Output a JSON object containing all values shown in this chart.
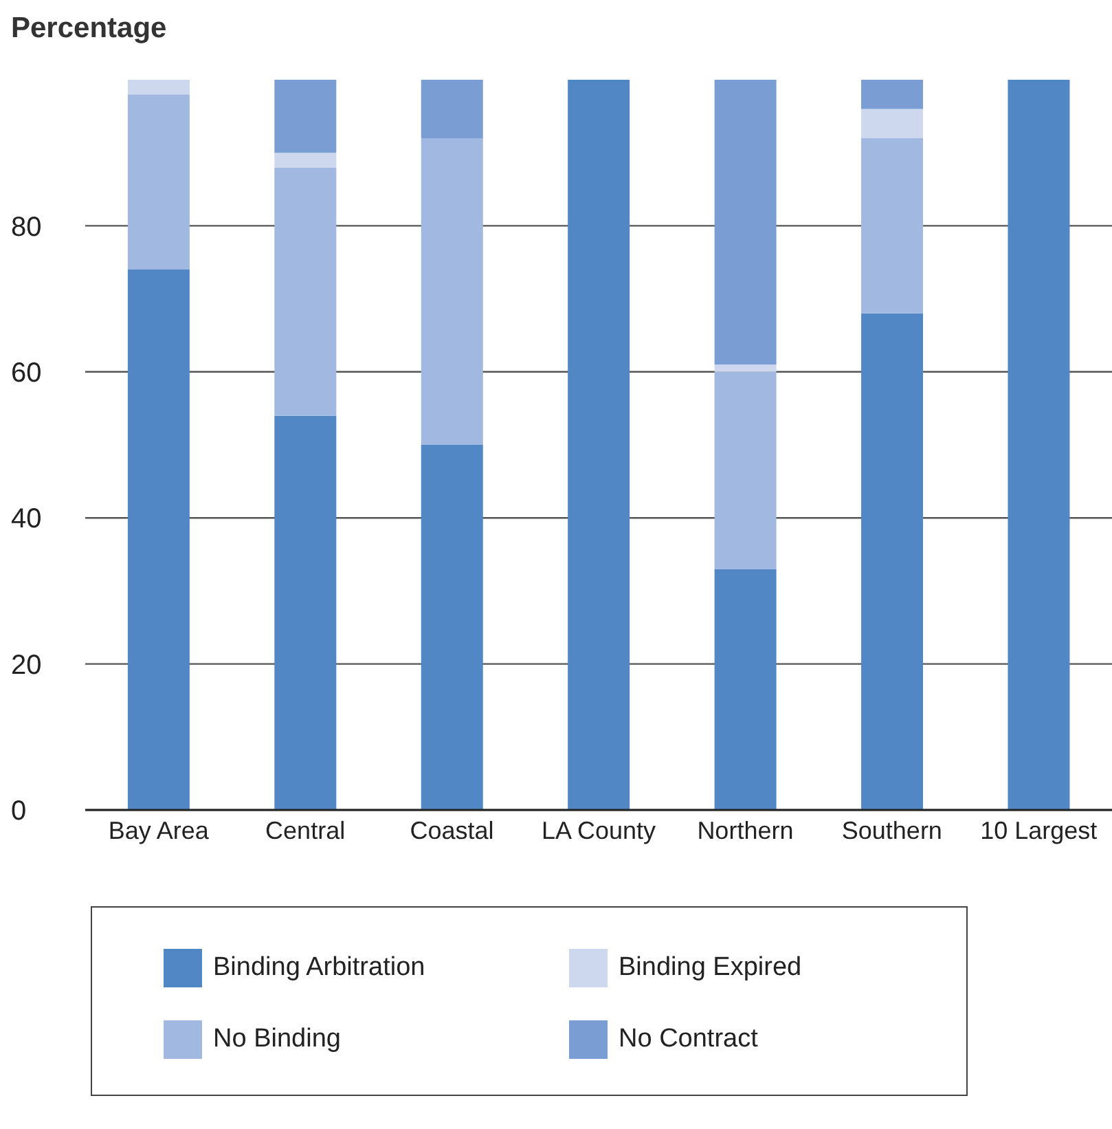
{
  "chart_data": {
    "type": "bar",
    "ylabel": "Percentage",
    "categories": [
      "Bay Area",
      "Central",
      "Coastal",
      "LA County",
      "Northern",
      "Southern",
      "10 Largest"
    ],
    "stacked": true,
    "ylim": [
      0,
      100
    ],
    "yticks": [
      0,
      20,
      40,
      60,
      80
    ],
    "grid": "y",
    "legend": "bottom",
    "series": [
      {
        "name": "Binding Arbitration",
        "color": "#5287c6",
        "values": [
          74,
          54,
          50,
          100,
          33,
          68,
          100
        ]
      },
      {
        "name": "No Binding",
        "color": "#a1b8e0",
        "values": [
          24,
          34,
          42,
          0,
          27,
          24,
          0
        ]
      },
      {
        "name": "Binding Expired",
        "color": "#cdd7ee",
        "values": [
          2,
          2,
          0,
          0,
          1,
          4,
          0
        ]
      },
      {
        "name": "No Contract",
        "color": "#7a9ed3",
        "values": [
          0,
          10,
          8,
          0,
          39,
          4,
          0
        ]
      }
    ]
  }
}
